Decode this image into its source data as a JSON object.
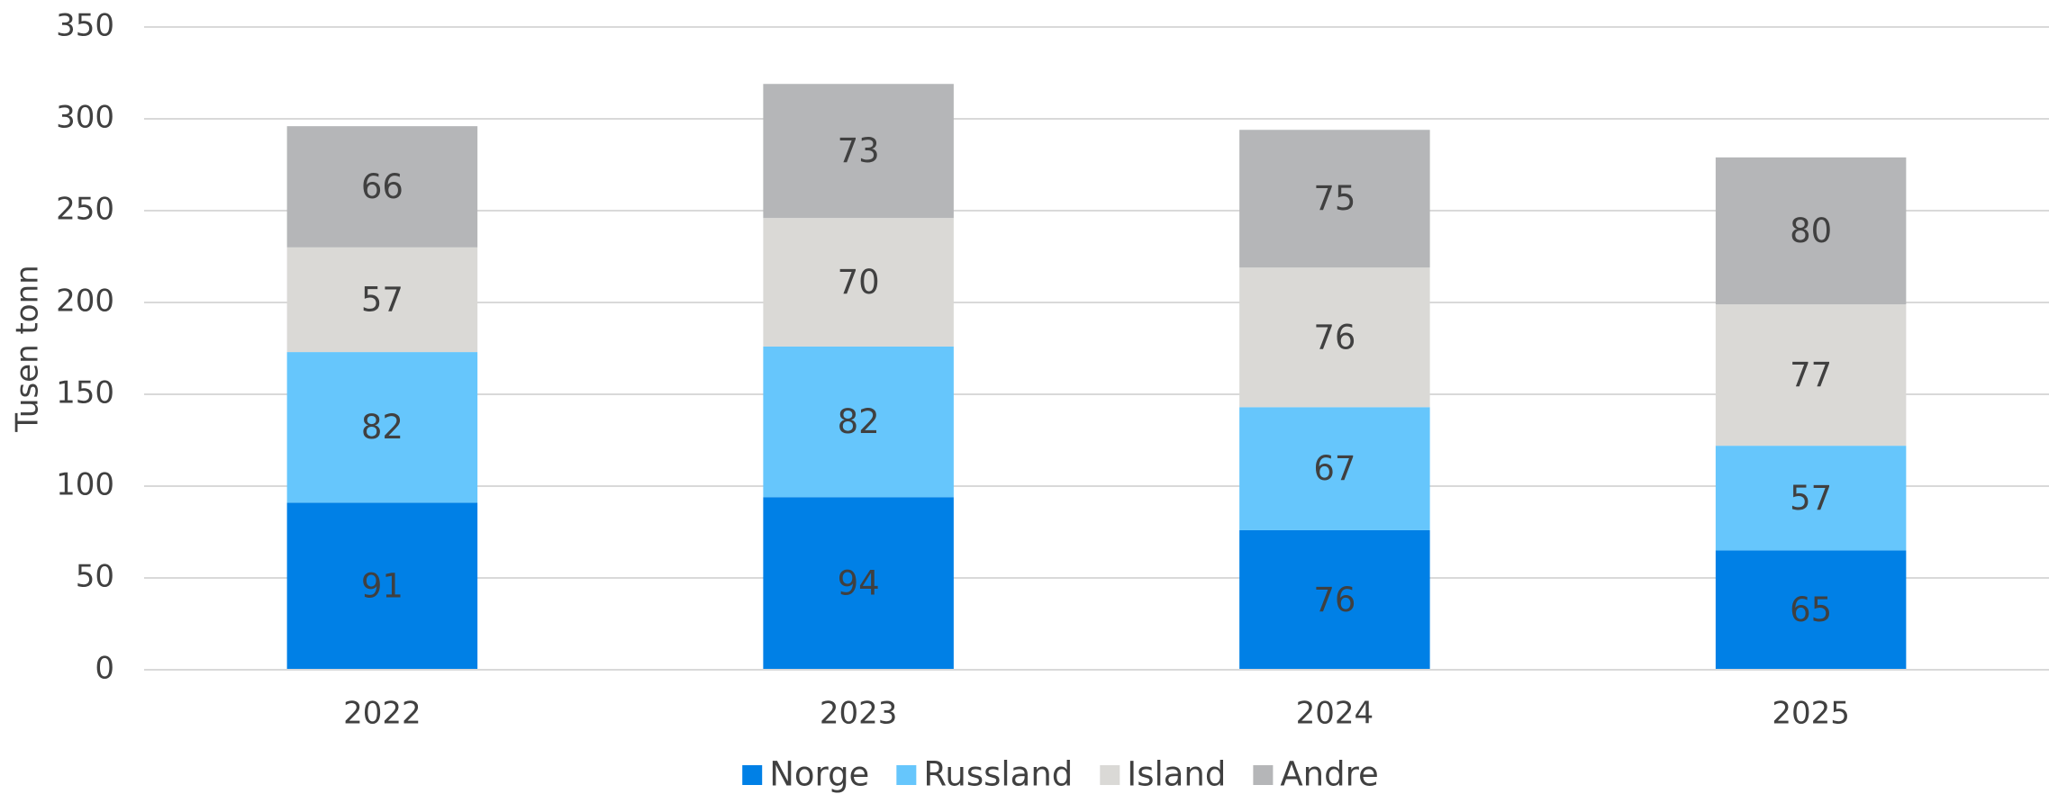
{
  "chart_data": {
    "type": "stacked_bar",
    "y_label": "Tusen tonn",
    "categories": [
      "2022",
      "2023",
      "2024",
      "2025"
    ],
    "series": [
      {
        "name": "Norge",
        "color": "#0080e6",
        "values": [
          91,
          94,
          76,
          65
        ]
      },
      {
        "name": "Russland",
        "color": "#66c6fc",
        "values": [
          82,
          82,
          67,
          57
        ]
      },
      {
        "name": "Island",
        "color": "#dad9d6",
        "values": [
          57,
          70,
          76,
          77
        ]
      },
      {
        "name": "Andre",
        "color": "#b5b6b8",
        "values": [
          66,
          73,
          75,
          80
        ]
      }
    ],
    "ylim": [
      0,
      350
    ],
    "yticks": [
      0,
      50,
      100,
      150,
      200,
      250,
      300,
      350
    ],
    "grid": true,
    "legend": "bottom"
  }
}
